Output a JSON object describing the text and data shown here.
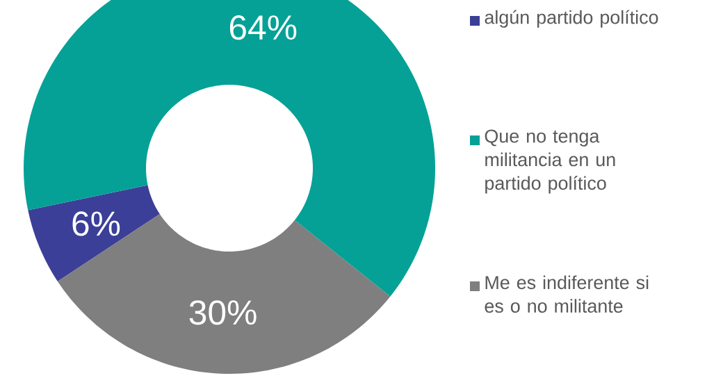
{
  "chart_data": {
    "type": "donut",
    "categories": [
      "algún partido político",
      "Que no tenga militancia en un partido político",
      "Me es indiferente si es o no militante"
    ],
    "values": [
      6,
      64,
      30
    ],
    "value_labels": [
      "6%",
      "64%",
      "30%"
    ],
    "colors": [
      "#3c3f97",
      "#05a196",
      "#7f7f7f"
    ],
    "legend": "right"
  }
}
